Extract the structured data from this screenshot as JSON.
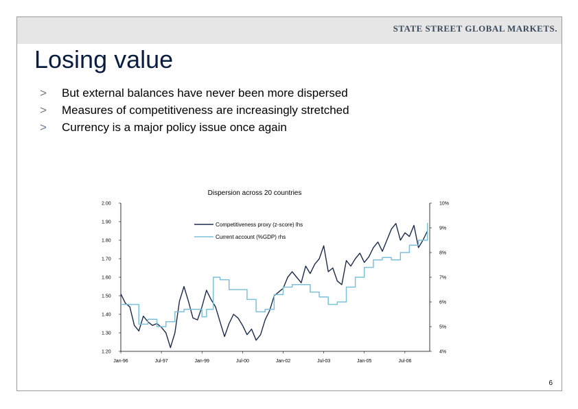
{
  "header": {
    "logo_text": "STATE STREET GLOBAL MARKETS.",
    "title": "Losing value"
  },
  "bullets": [
    {
      "marker": ">",
      "text": "But external balances have never been more dispersed"
    },
    {
      "marker": ">",
      "text": "Measures of competitiveness are increasingly stretched"
    },
    {
      "marker": ">",
      "text": "Currency is a major policy issue once again"
    }
  ],
  "page_number": "6",
  "colors": {
    "competitiveness": "#1b2a4a",
    "current_account": "#7cc0d8",
    "title": "#0a1d3f"
  },
  "chart_data": {
    "type": "line",
    "title": "Dispersion across 20 countries",
    "x_tick_labels": [
      "Jan-96",
      "Jul-97",
      "Jan-99",
      "Jul-00",
      "Jan-02",
      "Jul-03",
      "Jan-05",
      "Jul-06"
    ],
    "x_range": [
      "1996-01",
      "2007-06"
    ],
    "y_left": {
      "ticks": [
        "2.00",
        "1.90",
        "1.80",
        "1.70",
        "1.60",
        "1.50",
        "1.40",
        "1.30",
        "1.20"
      ],
      "range": [
        1.2,
        2.0
      ]
    },
    "y_right": {
      "ticks": [
        "10%",
        "9%",
        "8%",
        "7%",
        "6%",
        "5%",
        "4%"
      ],
      "range": [
        4,
        10
      ]
    },
    "legend_position": "top-center",
    "series": [
      {
        "name": "Competitiveness proxy (z-score) lhs",
        "axis": "left",
        "style": "dark",
        "x": [
          "1996-01",
          "1996-03",
          "1996-05",
          "1996-07",
          "1996-09",
          "1996-11",
          "1997-01",
          "1997-03",
          "1997-05",
          "1997-07",
          "1997-09",
          "1997-11",
          "1998-01",
          "1998-03",
          "1998-05",
          "1998-07",
          "1998-09",
          "1998-11",
          "1999-01",
          "1999-03",
          "1999-05",
          "1999-07",
          "1999-09",
          "1999-11",
          "2000-01",
          "2000-03",
          "2000-05",
          "2000-07",
          "2000-09",
          "2000-11",
          "2001-01",
          "2001-03",
          "2001-05",
          "2001-07",
          "2001-09",
          "2001-11",
          "2002-01",
          "2002-03",
          "2002-05",
          "2002-07",
          "2002-09",
          "2002-11",
          "2003-01",
          "2003-03",
          "2003-05",
          "2003-07",
          "2003-09",
          "2003-11",
          "2004-01",
          "2004-03",
          "2004-05",
          "2004-07",
          "2004-09",
          "2004-11",
          "2005-01",
          "2005-03",
          "2005-05",
          "2005-07",
          "2005-09",
          "2005-11",
          "2006-01",
          "2006-03",
          "2006-05",
          "2006-07",
          "2006-09",
          "2006-11",
          "2007-01",
          "2007-03",
          "2007-05"
        ],
        "values": [
          1.51,
          1.46,
          1.44,
          1.34,
          1.31,
          1.39,
          1.36,
          1.34,
          1.35,
          1.33,
          1.3,
          1.22,
          1.3,
          1.47,
          1.55,
          1.47,
          1.38,
          1.37,
          1.44,
          1.53,
          1.48,
          1.44,
          1.36,
          1.28,
          1.35,
          1.4,
          1.38,
          1.34,
          1.29,
          1.32,
          1.26,
          1.29,
          1.37,
          1.42,
          1.5,
          1.52,
          1.54,
          1.6,
          1.63,
          1.6,
          1.57,
          1.66,
          1.62,
          1.67,
          1.7,
          1.77,
          1.63,
          1.65,
          1.58,
          1.56,
          1.69,
          1.66,
          1.7,
          1.73,
          1.68,
          1.71,
          1.76,
          1.79,
          1.74,
          1.8,
          1.86,
          1.89,
          1.8,
          1.84,
          1.82,
          1.88,
          1.76,
          1.8,
          1.85
        ]
      },
      {
        "name": "Current account (%GDP) rhs",
        "axis": "right",
        "style": "light",
        "x": [
          "1996-01",
          "1996-05",
          "1996-09",
          "1997-01",
          "1997-05",
          "1997-09",
          "1998-01",
          "1998-05",
          "1998-09",
          "1999-01",
          "1999-03",
          "1999-06",
          "1999-09",
          "2000-01",
          "2000-05",
          "2000-09",
          "2001-01",
          "2001-05",
          "2001-09",
          "2002-01",
          "2002-05",
          "2002-09",
          "2003-01",
          "2003-05",
          "2003-09",
          "2004-01",
          "2004-05",
          "2004-09",
          "2005-01",
          "2005-05",
          "2005-09",
          "2006-01",
          "2006-05",
          "2006-09",
          "2007-01",
          "2007-05"
        ],
        "values": [
          5.9,
          5.9,
          5.1,
          5.3,
          5.0,
          5.2,
          5.6,
          5.7,
          5.7,
          5.4,
          5.7,
          7.0,
          6.9,
          6.5,
          6.5,
          6.1,
          5.6,
          5.7,
          6.3,
          6.6,
          6.7,
          6.7,
          6.4,
          6.2,
          5.9,
          6.0,
          6.6,
          7.0,
          7.4,
          7.7,
          7.8,
          7.7,
          8.0,
          8.3,
          8.5,
          9.2
        ]
      }
    ]
  }
}
